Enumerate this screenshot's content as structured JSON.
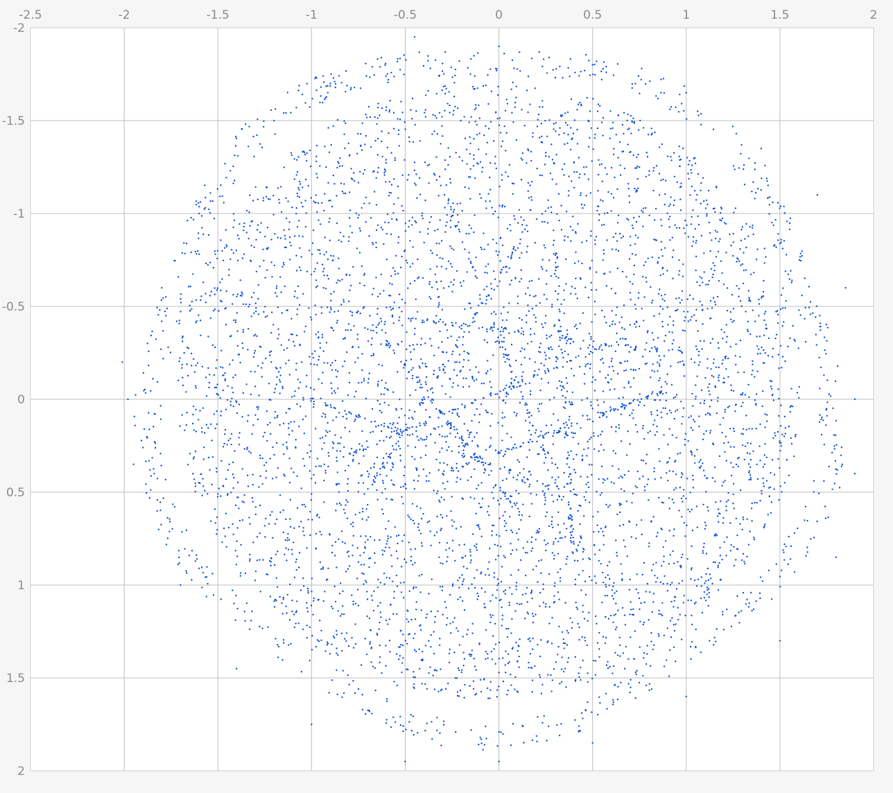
{
  "chart_data": {
    "type": "scatter",
    "title": "",
    "xlabel": "",
    "ylabel": "",
    "xlim": [
      -2.5,
      2
    ],
    "ylim": [
      -2,
      2
    ],
    "y_axis_direction": "down",
    "x_axis_position": "top",
    "grid": true,
    "x_ticks": [
      -2.5,
      -2,
      -1.5,
      -1,
      -0.5,
      0,
      0.5,
      1,
      1.5,
      2
    ],
    "x_tick_labels": [
      "-2.5",
      "-2",
      "-1.5",
      "-1",
      "-0.5",
      "0",
      "0.5",
      "1",
      "1.5",
      "2"
    ],
    "y_ticks": [
      -2,
      -1.5,
      -1,
      -0.5,
      0,
      0.5,
      1,
      1.5,
      2
    ],
    "y_tick_labels": [
      "-2",
      "-1.5",
      "-1",
      "-0.5",
      "0",
      "0.5",
      "1",
      "1.5",
      "2"
    ],
    "series": [
      {
        "marker_color": "#0b4fd6",
        "point_count": 6000,
        "approx_center": [
          -0.05,
          -0.05
        ],
        "approx_radius": 1.85,
        "points_sample": [
          [
            -2.01,
            -0.2
          ],
          [
            -1.98,
            0.0
          ],
          [
            -1.95,
            0.35
          ],
          [
            -1.8,
            -0.6
          ],
          [
            -1.6,
            -1.0
          ],
          [
            -1.2,
            -1.5
          ],
          [
            -0.9,
            -1.7
          ],
          [
            -0.45,
            -1.95
          ],
          [
            0.0,
            -1.9
          ],
          [
            0.5,
            -1.8
          ],
          [
            1.0,
            -1.65
          ],
          [
            1.4,
            -1.35
          ],
          [
            1.7,
            -1.1
          ],
          [
            1.85,
            -0.6
          ],
          [
            1.9,
            0.0
          ],
          [
            1.9,
            0.4
          ],
          [
            1.8,
            0.85
          ],
          [
            1.5,
            1.3
          ],
          [
            1.0,
            1.6
          ],
          [
            0.5,
            1.85
          ],
          [
            0.0,
            1.95
          ],
          [
            -0.5,
            1.95
          ],
          [
            -1.0,
            1.75
          ],
          [
            -1.4,
            1.45
          ],
          [
            -1.7,
            1.0
          ],
          [
            -0.45,
            -0.35
          ],
          [
            0.25,
            -0.45
          ],
          [
            -0.3,
            0.4
          ],
          [
            0.3,
            0.45
          ],
          [
            0.5,
            0.05
          ]
        ]
      }
    ]
  }
}
